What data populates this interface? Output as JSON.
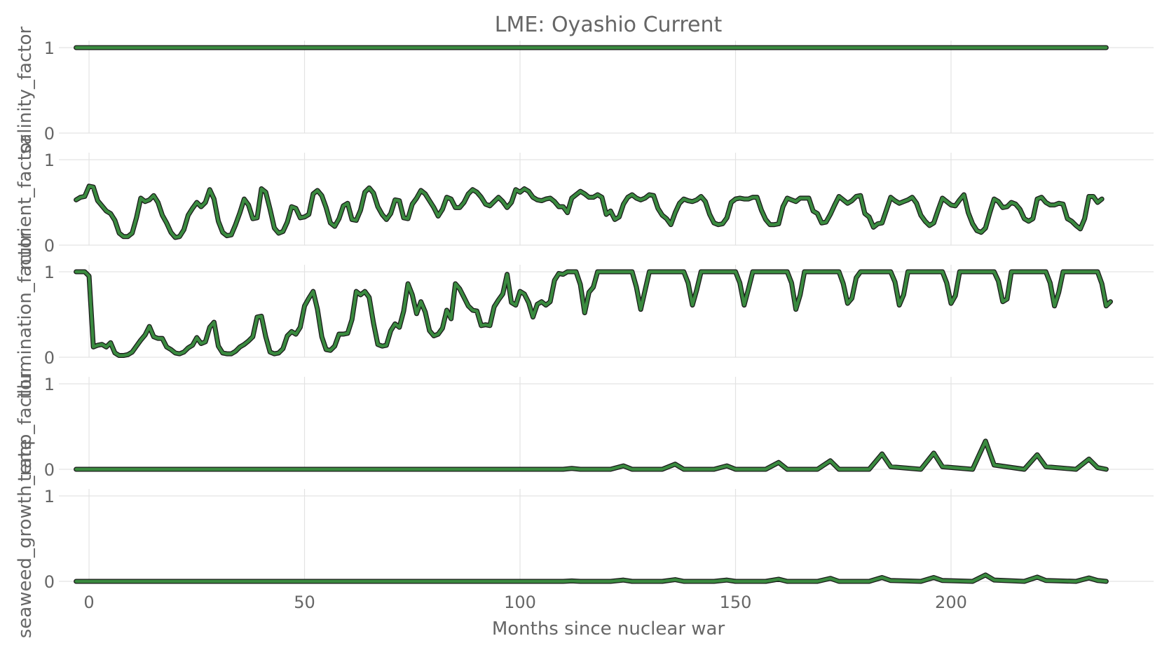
{
  "chart_data": {
    "type": "line",
    "title": "LME: Oyashio Current",
    "xlabel": "Months since nuclear war",
    "xlim": [
      -7,
      247
    ],
    "xticks": [
      0,
      50,
      100,
      150,
      200
    ],
    "x_start": -3,
    "x_end": 236,
    "line_color": "#3a8a3f",
    "outline_color": "#1a1a1a",
    "grid": true,
    "panels": [
      {
        "ylabel": "salinity_factor",
        "ylim": [
          0,
          1
        ],
        "yticks": [
          0,
          1
        ],
        "kind": "constant",
        "value": 1.0
      },
      {
        "ylabel": "nutrient_factor",
        "ylim": [
          0,
          1
        ],
        "yticks": [
          0,
          1
        ],
        "kind": "monthly",
        "values": [
          0.53,
          0.56,
          0.57,
          0.69,
          0.68,
          0.52,
          0.46,
          0.4,
          0.37,
          0.29,
          0.14,
          0.1,
          0.1,
          0.14,
          0.32,
          0.55,
          0.51,
          0.53,
          0.58,
          0.5,
          0.35,
          0.26,
          0.15,
          0.09,
          0.1,
          0.18,
          0.35,
          0.43,
          0.5,
          0.45,
          0.5,
          0.65,
          0.54,
          0.28,
          0.15,
          0.11,
          0.12,
          0.24,
          0.38,
          0.54,
          0.47,
          0.31,
          0.32,
          0.66,
          0.62,
          0.42,
          0.2,
          0.14,
          0.16,
          0.27,
          0.45,
          0.43,
          0.32,
          0.33,
          0.36,
          0.6,
          0.64,
          0.58,
          0.44,
          0.26,
          0.22,
          0.31,
          0.46,
          0.49,
          0.3,
          0.29,
          0.41,
          0.62,
          0.67,
          0.61,
          0.45,
          0.36,
          0.3,
          0.37,
          0.53,
          0.52,
          0.32,
          0.31,
          0.48,
          0.55,
          0.64,
          0.6,
          0.52,
          0.44,
          0.34,
          0.42,
          0.56,
          0.54,
          0.44,
          0.44,
          0.5,
          0.6,
          0.65,
          0.62,
          0.56,
          0.48,
          0.46,
          0.51,
          0.56,
          0.51,
          0.44,
          0.5,
          0.65,
          0.62,
          0.66,
          0.63,
          0.56,
          0.53,
          0.52,
          0.54,
          0.55,
          0.51,
          0.45,
          0.45,
          0.38,
          0.55,
          0.59,
          0.63,
          0.6,
          0.56,
          0.56,
          0.59,
          0.56,
          0.36,
          0.4,
          0.3,
          0.33,
          0.48,
          0.56,
          0.59,
          0.55,
          0.53,
          0.55,
          0.59,
          0.58,
          0.43,
          0.35,
          0.31,
          0.24,
          0.38,
          0.49,
          0.54,
          0.52,
          0.51,
          0.53,
          0.57,
          0.51,
          0.36,
          0.26,
          0.24,
          0.25,
          0.32,
          0.5,
          0.54,
          0.55,
          0.54,
          0.54,
          0.56,
          0.56,
          0.41,
          0.3,
          0.24,
          0.24,
          0.25,
          0.45,
          0.55,
          0.53,
          0.51,
          0.55,
          0.55,
          0.55,
          0.4,
          0.37,
          0.26,
          0.27,
          0.36,
          0.47,
          0.57,
          0.53,
          0.49,
          0.52,
          0.57,
          0.58,
          0.37,
          0.33,
          0.21,
          0.25,
          0.26,
          0.41,
          0.56,
          0.52,
          0.49,
          0.51,
          0.53,
          0.56,
          0.49,
          0.35,
          0.28,
          0.23,
          0.26,
          0.41,
          0.55,
          0.51,
          0.47,
          0.46,
          0.53,
          0.59,
          0.38,
          0.25,
          0.17,
          0.15,
          0.2,
          0.38,
          0.54,
          0.51,
          0.44,
          0.45,
          0.5,
          0.48,
          0.42,
          0.31,
          0.28,
          0.31,
          0.54,
          0.56,
          0.5,
          0.47,
          0.47,
          0.49,
          0.48,
          0.31,
          0.28,
          0.23,
          0.19,
          0.31,
          0.57,
          0.57,
          0.5,
          0.54
        ]
      },
      {
        "ylabel": "illumination_factor",
        "ylim": [
          0,
          1
        ],
        "yticks": [
          0,
          1
        ],
        "kind": "monthly",
        "values": [
          1.0,
          1.0,
          1.0,
          0.95,
          0.12,
          0.14,
          0.15,
          0.12,
          0.17,
          0.05,
          0.02,
          0.02,
          0.03,
          0.06,
          0.13,
          0.2,
          0.26,
          0.36,
          0.24,
          0.22,
          0.22,
          0.12,
          0.09,
          0.05,
          0.04,
          0.06,
          0.11,
          0.14,
          0.23,
          0.16,
          0.18,
          0.35,
          0.41,
          0.13,
          0.05,
          0.04,
          0.04,
          0.07,
          0.12,
          0.15,
          0.19,
          0.24,
          0.47,
          0.48,
          0.24,
          0.06,
          0.04,
          0.05,
          0.1,
          0.25,
          0.3,
          0.27,
          0.35,
          0.6,
          0.69,
          0.77,
          0.56,
          0.24,
          0.09,
          0.08,
          0.13,
          0.27,
          0.27,
          0.28,
          0.44,
          0.77,
          0.73,
          0.77,
          0.7,
          0.4,
          0.15,
          0.13,
          0.14,
          0.31,
          0.39,
          0.35,
          0.54,
          0.86,
          0.73,
          0.51,
          0.65,
          0.53,
          0.31,
          0.25,
          0.27,
          0.34,
          0.55,
          0.45,
          0.86,
          0.8,
          0.7,
          0.6,
          0.55,
          0.54,
          0.37,
          0.38,
          0.37,
          0.59,
          0.67,
          0.74,
          0.97,
          0.64,
          0.61,
          0.77,
          0.74,
          0.64,
          0.47,
          0.62,
          0.65,
          0.61,
          0.65,
          0.9,
          0.98,
          0.97,
          1.0,
          1.0,
          1.0,
          0.85,
          0.52,
          0.76,
          0.82,
          1.0,
          1.0,
          1.0,
          1.0,
          1.0,
          1.0,
          1.0,
          1.0,
          1.0,
          0.82,
          0.56,
          0.78,
          1.0,
          1.0,
          1.0,
          1.0,
          1.0,
          1.0,
          1.0,
          1.0,
          1.0,
          0.87,
          0.61,
          0.79,
          1.0,
          1.0,
          1.0,
          1.0,
          1.0,
          1.0,
          1.0,
          1.0,
          1.0,
          0.87,
          0.61,
          0.8,
          1.0,
          1.0,
          1.0,
          1.0,
          1.0,
          1.0,
          1.0,
          1.0,
          1.0,
          0.87,
          0.56,
          0.73,
          1.0,
          1.0,
          1.0,
          1.0,
          1.0,
          1.0,
          1.0,
          1.0,
          1.0,
          0.86,
          0.63,
          0.69,
          0.93,
          1.0,
          1.0,
          1.0,
          1.0,
          1.0,
          1.0,
          1.0,
          1.0,
          0.88,
          0.61,
          0.73,
          1.0,
          1.0,
          1.0,
          1.0,
          1.0,
          1.0,
          1.0,
          1.0,
          1.0,
          0.87,
          0.63,
          0.72,
          1.0,
          1.0,
          1.0,
          1.0,
          1.0,
          1.0,
          1.0,
          1.0,
          1.0,
          0.89,
          0.65,
          0.68,
          1.0,
          1.0,
          1.0,
          1.0,
          1.0,
          1.0,
          1.0,
          1.0,
          1.0,
          0.87,
          0.6,
          0.76,
          1.0,
          1.0,
          1.0,
          1.0,
          1.0,
          1.0,
          1.0,
          1.0,
          1.0,
          0.86,
          0.6,
          0.65
        ]
      },
      {
        "ylabel": "temp_factor",
        "ylim": [
          0,
          1
        ],
        "yticks": [
          0,
          1
        ],
        "kind": "sparse",
        "baseline": 0.0,
        "points": [
          [
            -3,
            0
          ],
          [
            110,
            0
          ],
          [
            112,
            0.01
          ],
          [
            114,
            0
          ],
          [
            121,
            0
          ],
          [
            124,
            0.04
          ],
          [
            126,
            0
          ],
          [
            133,
            0
          ],
          [
            136,
            0.06
          ],
          [
            138,
            0
          ],
          [
            145,
            0
          ],
          [
            148,
            0.04
          ],
          [
            150,
            0
          ],
          [
            157,
            0
          ],
          [
            160,
            0.08
          ],
          [
            162,
            0
          ],
          [
            169,
            0
          ],
          [
            172,
            0.1
          ],
          [
            174,
            0
          ],
          [
            181,
            0
          ],
          [
            184,
            0.18
          ],
          [
            186,
            0.03
          ],
          [
            193,
            0
          ],
          [
            196,
            0.19
          ],
          [
            198,
            0.03
          ],
          [
            205,
            0
          ],
          [
            208,
            0.33
          ],
          [
            210,
            0.05
          ],
          [
            217,
            0
          ],
          [
            220,
            0.17
          ],
          [
            222,
            0.03
          ],
          [
            229,
            0
          ],
          [
            232,
            0.12
          ],
          [
            234,
            0.02
          ],
          [
            236,
            0
          ]
        ]
      },
      {
        "ylabel": "seaweed_growth_rate",
        "ylim": [
          0,
          1
        ],
        "yticks": [
          0,
          1
        ],
        "kind": "sparse",
        "baseline": 0.0,
        "points": [
          [
            -3,
            0
          ],
          [
            110,
            0
          ],
          [
            112,
            0.005
          ],
          [
            114,
            0
          ],
          [
            121,
            0
          ],
          [
            124,
            0.015
          ],
          [
            126,
            0
          ],
          [
            133,
            0
          ],
          [
            136,
            0.02
          ],
          [
            138,
            0
          ],
          [
            145,
            0
          ],
          [
            148,
            0.015
          ],
          [
            150,
            0
          ],
          [
            157,
            0
          ],
          [
            160,
            0.025
          ],
          [
            162,
            0
          ],
          [
            169,
            0
          ],
          [
            172,
            0.035
          ],
          [
            174,
            0
          ],
          [
            181,
            0
          ],
          [
            184,
            0.045
          ],
          [
            186,
            0.01
          ],
          [
            193,
            0
          ],
          [
            196,
            0.045
          ],
          [
            198,
            0.01
          ],
          [
            205,
            0
          ],
          [
            208,
            0.075
          ],
          [
            210,
            0.015
          ],
          [
            217,
            0
          ],
          [
            220,
            0.05
          ],
          [
            222,
            0.01
          ],
          [
            229,
            0
          ],
          [
            232,
            0.04
          ],
          [
            234,
            0.01
          ],
          [
            236,
            0
          ]
        ]
      }
    ]
  }
}
